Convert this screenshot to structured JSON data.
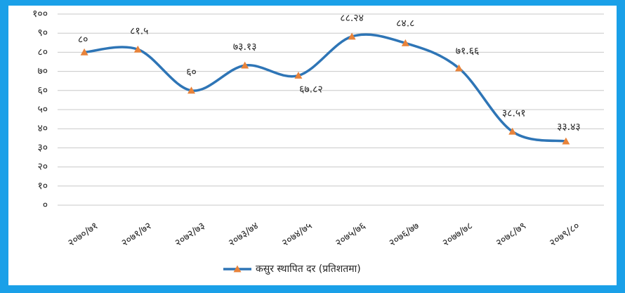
{
  "chart_data": {
    "type": "line",
    "categories": [
      "२०७०/७१",
      "२०७१/७२",
      "२०७२/७३",
      "२०७३/७४",
      "२०७४/७५",
      "२०७५/७६",
      "२०७६/७७",
      "२०७७/७८",
      "२०७८/७९",
      "२०७९/८०"
    ],
    "series": [
      {
        "name": "कसुर स्थापित दर (प्रतिशतमा)",
        "color": "#2e75b6",
        "marker_color": "#e8833a",
        "values": [
          80,
          81.5,
          60,
          73.13,
          67.82,
          88.24,
          84.8,
          71.66,
          38.51,
          33.43
        ],
        "value_labels": [
          "८०",
          "८१.५",
          "६०",
          "७३.१३",
          "६७.८२",
          "८८.२४",
          "८४.८",
          "७१.६६",
          "३८.५१",
          "३३.४३"
        ]
      }
    ],
    "ylim": [
      0,
      100
    ],
    "yticks": [
      {
        "value": 0,
        "label": "०"
      },
      {
        "value": 10,
        "label": "१०"
      },
      {
        "value": 20,
        "label": "२०"
      },
      {
        "value": 30,
        "label": "३०"
      },
      {
        "value": 40,
        "label": "४०"
      },
      {
        "value": 50,
        "label": "५०"
      },
      {
        "value": 60,
        "label": "६०"
      },
      {
        "value": 70,
        "label": "७०"
      },
      {
        "value": 80,
        "label": "८०"
      },
      {
        "value": 90,
        "label": "९०"
      },
      {
        "value": 100,
        "label": "१००"
      }
    ],
    "grid": true,
    "legend": "bottom"
  }
}
